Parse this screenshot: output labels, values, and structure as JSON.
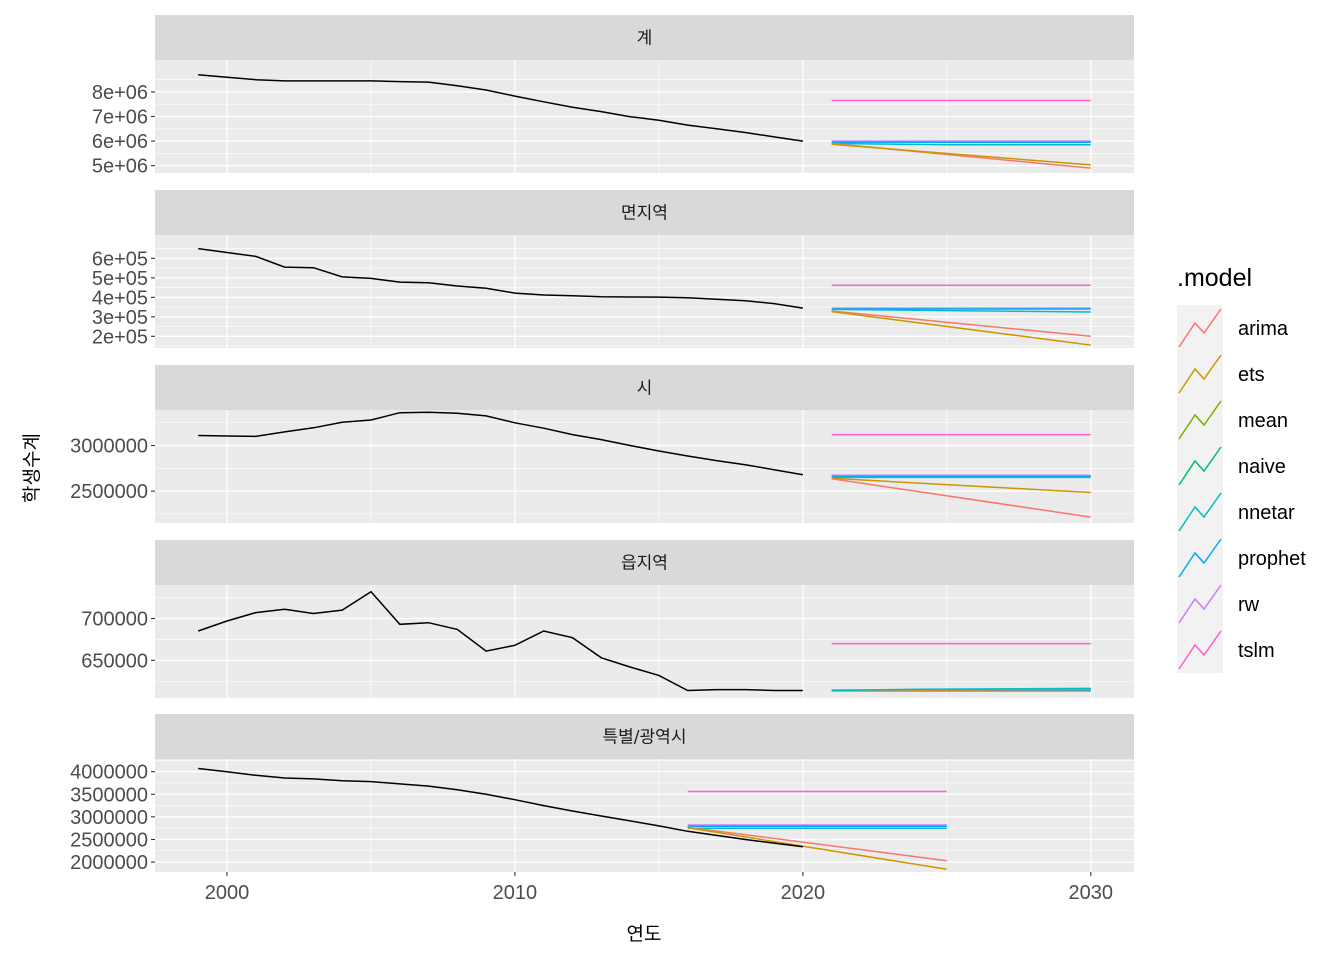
{
  "chart_data": {
    "type": "line",
    "xlabel": "연도",
    "ylabel": "학생수계",
    "xlim": [
      1997.5,
      2031.5
    ],
    "x_ticks": [
      2000,
      2010,
      2020,
      2030
    ],
    "x_tick_labels": [
      "2000",
      "2010",
      "2020",
      "2030"
    ],
    "legend": {
      "title": ".model",
      "position": "right",
      "entries": [
        {
          "name": "arima",
          "color": "#F8766D"
        },
        {
          "name": "ets",
          "color": "#CD9600"
        },
        {
          "name": "mean",
          "color": "#7CAE00"
        },
        {
          "name": "naive",
          "color": "#00BE67"
        },
        {
          "name": "nnetar",
          "color": "#00BFC4"
        },
        {
          "name": "prophet",
          "color": "#00A9FF"
        },
        {
          "name": "rw",
          "color": "#C77CFF"
        },
        {
          "name": "tslm",
          "color": "#FF61CC"
        }
      ]
    },
    "history_color": "#000000",
    "panels": [
      {
        "strip": "계",
        "ylim": [
          4700000,
          9300000
        ],
        "y_ticks": [
          5000000,
          6000000,
          7000000,
          8000000
        ],
        "y_tick_labels": [
          "5e+06",
          "6e+06",
          "7e+06",
          "8e+06"
        ],
        "history": {
          "x": [
            1999,
            2000,
            2001,
            2002,
            2003,
            2004,
            2005,
            2006,
            2007,
            2008,
            2009,
            2010,
            2011,
            2012,
            2013,
            2014,
            2015,
            2016,
            2017,
            2018,
            2019,
            2020
          ],
          "y": [
            8700000,
            8600000,
            8500000,
            8450000,
            8450000,
            8450000,
            8450000,
            8420000,
            8400000,
            8250000,
            8080000,
            7830000,
            7600000,
            7380000,
            7200000,
            6990000,
            6850000,
            6650000,
            6500000,
            6350000,
            6170000,
            6000000
          ]
        },
        "forecasts": [
          {
            "model": "tslm",
            "x": [
              2021,
              2030
            ],
            "y": [
              7650000,
              7650000
            ]
          },
          {
            "model": "rw",
            "x": [
              2021,
              2030
            ],
            "y": [
              6000000,
              6000000
            ]
          },
          {
            "model": "prophet",
            "x": [
              2021,
              2030
            ],
            "y": [
              5950000,
              5950000
            ]
          },
          {
            "model": "nnetar",
            "x": [
              2021,
              2025,
              2030
            ],
            "y": [
              5900000,
              5850000,
              5850000
            ]
          },
          {
            "model": "arima",
            "x": [
              2021,
              2030
            ],
            "y": [
              5900000,
              4900000
            ]
          },
          {
            "model": "ets",
            "x": [
              2021,
              2030
            ],
            "y": [
              5870000,
              5030000
            ]
          }
        ]
      },
      {
        "strip": "면지역",
        "ylim": [
          140000,
          720000
        ],
        "y_ticks": [
          200000,
          300000,
          400000,
          500000,
          600000
        ],
        "y_tick_labels": [
          "2e+05",
          "3e+05",
          "4e+05",
          "5e+05",
          "6e+05"
        ],
        "history": {
          "x": [
            1999,
            2000,
            2001,
            2002,
            2003,
            2004,
            2005,
            2006,
            2007,
            2008,
            2009,
            2010,
            2011,
            2012,
            2013,
            2014,
            2015,
            2016,
            2017,
            2018,
            2019,
            2020
          ],
          "y": [
            650000,
            630000,
            610000,
            555000,
            552000,
            505000,
            497000,
            478000,
            475000,
            458000,
            447000,
            422000,
            412000,
            408000,
            403000,
            402000,
            401000,
            398000,
            390000,
            383000,
            368000,
            345000
          ]
        },
        "forecasts": [
          {
            "model": "tslm",
            "x": [
              2021,
              2030
            ],
            "y": [
              462000,
              462000
            ]
          },
          {
            "model": "rw",
            "x": [
              2021,
              2030
            ],
            "y": [
              345000,
              345000
            ]
          },
          {
            "model": "prophet",
            "x": [
              2021,
              2030
            ],
            "y": [
              340000,
              340000
            ]
          },
          {
            "model": "nnetar",
            "x": [
              2021,
              2025,
              2030
            ],
            "y": [
              338000,
              332000,
              325000
            ]
          },
          {
            "model": "arima",
            "x": [
              2021,
              2030
            ],
            "y": [
              330000,
              200000
            ]
          },
          {
            "model": "ets",
            "x": [
              2021,
              2030
            ],
            "y": [
              327000,
              155000
            ]
          }
        ]
      },
      {
        "strip": "시",
        "ylim": [
          2150000,
          3390000
        ],
        "y_ticks": [
          2500000,
          3000000
        ],
        "y_tick_labels": [
          "2500000",
          "3000000"
        ],
        "history": {
          "x": [
            1999,
            2000,
            2001,
            2002,
            2003,
            2004,
            2005,
            2006,
            2007,
            2008,
            2009,
            2010,
            2011,
            2012,
            2013,
            2014,
            2015,
            2016,
            2017,
            2018,
            2019,
            2020
          ],
          "y": [
            3110000,
            3105000,
            3100000,
            3150000,
            3195000,
            3255000,
            3280000,
            3360000,
            3365000,
            3355000,
            3325000,
            3250000,
            3190000,
            3120000,
            3065000,
            3000000,
            2940000,
            2885000,
            2835000,
            2790000,
            2735000,
            2680000
          ]
        },
        "forecasts": [
          {
            "model": "tslm",
            "x": [
              2021,
              2030
            ],
            "y": [
              3120000,
              3120000
            ]
          },
          {
            "model": "rw",
            "x": [
              2021,
              2030
            ],
            "y": [
              2675000,
              2675000
            ]
          },
          {
            "model": "prophet",
            "x": [
              2021,
              2030
            ],
            "y": [
              2660000,
              2660000
            ]
          },
          {
            "model": "nnetar",
            "x": [
              2021,
              2030
            ],
            "y": [
              2650000,
              2650000
            ]
          },
          {
            "model": "ets",
            "x": [
              2021,
              2030
            ],
            "y": [
              2640000,
              2485000
            ]
          },
          {
            "model": "arima",
            "x": [
              2021,
              2030
            ],
            "y": [
              2635000,
              2215000
            ]
          }
        ]
      },
      {
        "strip": "읍지역",
        "ylim": [
          605000,
          740000
        ],
        "y_ticks": [
          650000,
          700000
        ],
        "y_tick_labels": [
          "650000",
          "700000"
        ],
        "history": {
          "x": [
            1999,
            2000,
            2001,
            2002,
            2003,
            2004,
            2005,
            2006,
            2007,
            2008,
            2009,
            2010,
            2011,
            2012,
            2013,
            2014,
            2015,
            2016,
            2017,
            2018,
            2019,
            2020
          ],
          "y": [
            685000,
            697000,
            707000,
            711000,
            706000,
            710000,
            732000,
            693000,
            695000,
            687000,
            661000,
            668000,
            685000,
            677000,
            653000,
            642000,
            632000,
            614000,
            615000,
            615000,
            614000,
            614000
          ]
        },
        "forecasts": [
          {
            "model": "tslm",
            "x": [
              2021,
              2030
            ],
            "y": [
              670000,
              670000
            ]
          },
          {
            "model": "rw",
            "x": [
              2021,
              2030
            ],
            "y": [
              614000,
              614000
            ]
          },
          {
            "model": "prophet",
            "x": [
              2021,
              2030
            ],
            "y": [
              613500,
              613500
            ]
          },
          {
            "model": "arima",
            "x": [
              2021,
              2030
            ],
            "y": [
              614000,
              615000
            ]
          },
          {
            "model": "ets",
            "x": [
              2021,
              2030
            ],
            "y": [
              614500,
              615200
            ]
          },
          {
            "model": "nnetar",
            "x": [
              2021,
              2024,
              2030
            ],
            "y": [
              614000,
              615500,
              616500
            ]
          }
        ]
      },
      {
        "strip": "특별/광역시",
        "ylim": [
          1780000,
          4280000
        ],
        "y_ticks": [
          2000000,
          2500000,
          3000000,
          3500000,
          4000000
        ],
        "y_tick_labels": [
          "2000000",
          "2500000",
          "3000000",
          "3500000",
          "4000000"
        ],
        "history": {
          "x": [
            1999,
            2000,
            2001,
            2002,
            2003,
            2004,
            2005,
            2006,
            2007,
            2008,
            2009,
            2010,
            2011,
            2012,
            2013,
            2014,
            2015,
            2016,
            2017,
            2018,
            2019,
            2020
          ],
          "y": [
            4070000,
            4000000,
            3920000,
            3860000,
            3840000,
            3800000,
            3780000,
            3730000,
            3680000,
            3600000,
            3500000,
            3380000,
            3250000,
            3130000,
            3020000,
            2910000,
            2800000,
            2680000,
            2590000,
            2500000,
            2420000,
            2340000
          ]
        },
        "forecasts": [
          {
            "model": "tslm",
            "x": [
              2016,
              2025
            ],
            "y": [
              3560000,
              3560000
            ]
          },
          {
            "model": "rw",
            "x": [
              2016,
              2025
            ],
            "y": [
              2820000,
              2820000
            ]
          },
          {
            "model": "prophet",
            "x": [
              2016,
              2025
            ],
            "y": [
              2790000,
              2790000
            ]
          },
          {
            "model": "nnetar",
            "x": [
              2016,
              2025
            ],
            "y": [
              2750000,
              2750000
            ]
          },
          {
            "model": "arima",
            "x": [
              2016,
              2025
            ],
            "y": [
              2770000,
              2030000
            ]
          },
          {
            "model": "ets",
            "x": [
              2016,
              2025
            ],
            "y": [
              2760000,
              1840000
            ]
          }
        ]
      }
    ]
  }
}
